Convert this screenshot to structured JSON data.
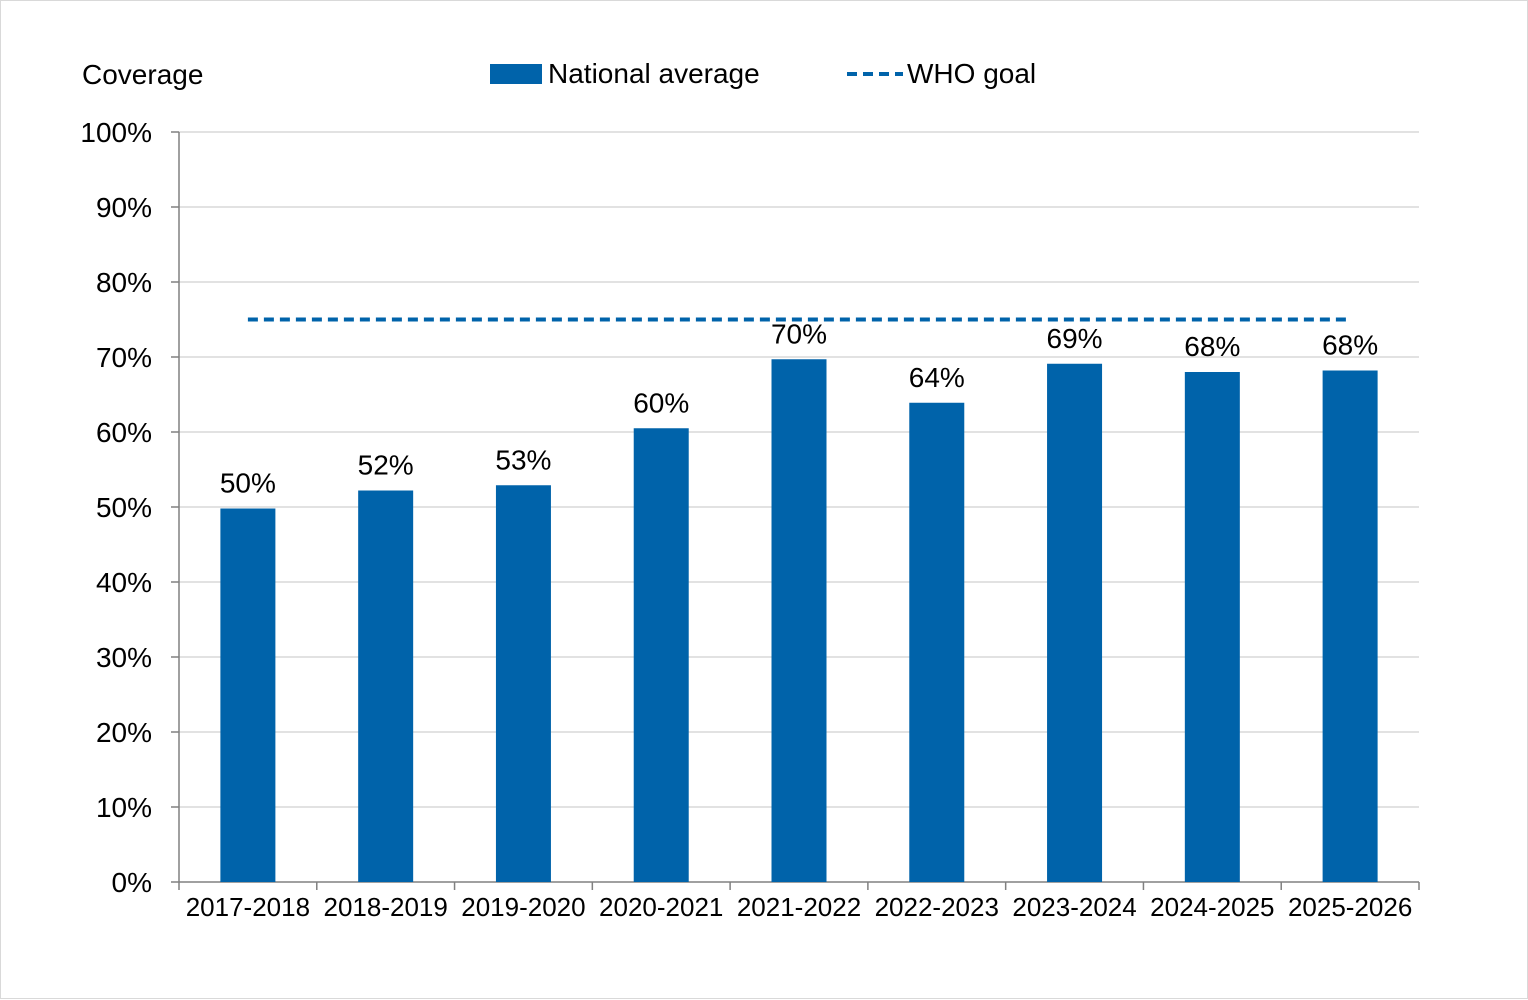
{
  "chart_data": {
    "type": "bar",
    "ylabel": "Coverage",
    "categories": [
      "2017-2018",
      "2018-2019",
      "2019-2020",
      "2020-2021",
      "2021-2022",
      "2022-2023",
      "2023-2024",
      "2024-2025",
      "2025-2026"
    ],
    "series": [
      {
        "name": "National average",
        "values": [
          49.8,
          52.2,
          52.9,
          60.5,
          69.7,
          63.9,
          69.1,
          68.0,
          68.2
        ],
        "labels": [
          "50%",
          "52%",
          "53%",
          "60%",
          "70%",
          "64%",
          "69%",
          "68%",
          "68%"
        ],
        "color": "#0063AA"
      }
    ],
    "reference_line": {
      "name": "WHO goal",
      "value": 75,
      "style": "dashed",
      "color": "#0063AA"
    },
    "ylim": [
      0,
      100
    ],
    "y_ticks": [
      0,
      10,
      20,
      30,
      40,
      50,
      60,
      70,
      80,
      90,
      100
    ],
    "y_tick_labels": [
      "0%",
      "10%",
      "20%",
      "30%",
      "40%",
      "50%",
      "60%",
      "70%",
      "80%",
      "90%",
      "100%"
    ],
    "grid": true,
    "legend_position": "top"
  }
}
